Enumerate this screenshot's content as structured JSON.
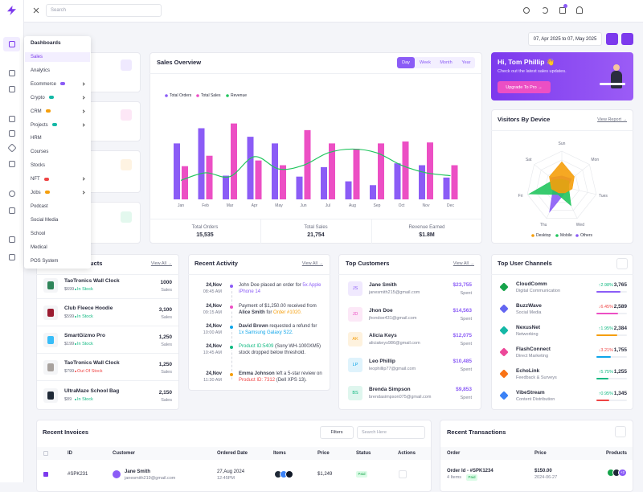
{
  "search_placeholder": "Search",
  "menu": {
    "header": "Dashboards",
    "items": [
      {
        "label": "Sales",
        "active": true
      },
      {
        "label": "Analytics"
      },
      {
        "label": "Ecommerce",
        "badge_color": "#8b5cf6",
        "submenu": true
      },
      {
        "label": "Crypto",
        "badge_color": "#14b8a6",
        "submenu": true
      },
      {
        "label": "CRM",
        "badge_color": "#f59e0b",
        "submenu": true
      },
      {
        "label": "Projects",
        "badge_color": "#14b8a6",
        "submenu": true
      },
      {
        "label": "HRM"
      },
      {
        "label": "Courses"
      },
      {
        "label": "Stocks"
      },
      {
        "label": "NFT",
        "badge_color": "#ef4444",
        "submenu": true
      },
      {
        "label": "Jobs",
        "badge_color": "#f59e0b",
        "submenu": true
      },
      {
        "label": "Podcast"
      },
      {
        "label": "Social Media"
      },
      {
        "label": "School"
      },
      {
        "label": "Medical"
      },
      {
        "label": "POS System"
      }
    ]
  },
  "date_range": "07, Apr 2025 to 07, May 2025",
  "chart_data": [
    {
      "type": "bar",
      "title": "Sales Overview",
      "tabs": [
        {
          "label": "Day",
          "active": true
        },
        {
          "label": "Week"
        },
        {
          "label": "Month"
        },
        {
          "label": "Year"
        }
      ],
      "categories": [
        "Jan",
        "Feb",
        "Mar",
        "Apr",
        "May",
        "Jun",
        "Jul",
        "Aug",
        "Sep",
        "Oct",
        "Nov",
        "Dec"
      ],
      "series": [
        {
          "name": "Total Orders",
          "color": "#8b5cf6",
          "values": [
            59,
            75,
            25,
            66,
            59,
            24,
            34,
            19,
            15,
            38,
            36,
            23
          ]
        },
        {
          "name": "Total Sales",
          "color": "#ec4fc4",
          "values": [
            35,
            46,
            80,
            41,
            36,
            73,
            59,
            53,
            59,
            61,
            60,
            36
          ]
        },
        {
          "name": "Revenue",
          "type": "line",
          "color": "#22c55e",
          "values": [
            20,
            28,
            24,
            45,
            32,
            36,
            49,
            53,
            49,
            36,
            28,
            25
          ]
        }
      ],
      "ylim": [
        0,
        100
      ]
    },
    {
      "type": "radar",
      "title": "Visitors By Device",
      "link": "View Report →",
      "categories": [
        "Sun",
        "Mon",
        "Tues",
        "Wed",
        "Thu",
        "Fri",
        "Sat"
      ],
      "series": [
        {
          "name": "Desktop",
          "color": "#f59e0b",
          "values": [
            70,
            45,
            30,
            20,
            20,
            30,
            45
          ]
        },
        {
          "name": "Mobile",
          "color": "#22c55e",
          "values": [
            20,
            25,
            20,
            60,
            25,
            95,
            30
          ]
        },
        {
          "name": "Others",
          "color": "#8b5cf6",
          "values": [
            30,
            35,
            15,
            20,
            80,
            25,
            40
          ]
        }
      ],
      "rlim": [
        0,
        100
      ]
    }
  ],
  "sales_summary": [
    {
      "label": "Total Orders",
      "value": "15,535"
    },
    {
      "label": "Total Sales",
      "value": "21,754"
    },
    {
      "label": "Revenue Earned",
      "value": "$1.8M"
    }
  ],
  "promo": {
    "greeting": "Hi, Tom Phillip 👋",
    "text": "Check out the latest sales updates.",
    "button": "Upgrade To Pro →"
  },
  "top_products": {
    "title": "Top Selling Products",
    "link": "View All →",
    "items": [
      {
        "name": "TaoTronics Wall Clock",
        "price": "$699",
        "status": "In Stock",
        "status_color": "#10b981",
        "sales": "1000",
        "sales_label": "Sales",
        "image_color": "#2f855a"
      },
      {
        "name": "Club Fleece Hoodie",
        "price": "$599",
        "status": "In Stock",
        "status_color": "#10b981",
        "sales": "3,100",
        "sales_label": "Sales",
        "image_color": "#9b1c31"
      },
      {
        "name": "SmartGizmo Pro",
        "price": "$199",
        "status": "In Stock",
        "status_color": "#10b981",
        "sales": "1,250",
        "sales_label": "Sales",
        "image_color": "#38bdf8"
      },
      {
        "name": "TaoTronics Wall Clock",
        "price": "$799",
        "status": "Out Of Stock",
        "status_color": "#ef4444",
        "sales": "1,250",
        "sales_label": "Sales",
        "image_color": "#a8a29e"
      },
      {
        "name": "UltraMaze School Bag",
        "price": "$89",
        "status": "In Stock",
        "status_color": "#10b981",
        "sales": "2,150",
        "sales_label": "Sales",
        "image_color": "#1f2937"
      }
    ]
  },
  "recent_activity": {
    "title": "Recent Activity",
    "link": "View All →",
    "items": [
      {
        "date": "24,Nov",
        "time": "08:45 AM",
        "dot_color": "#8b5cf6",
        "parts": [
          {
            "text": "John Doe placed an order for "
          },
          {
            "text": "5x Apple iPhone 14",
            "color": "#8b5cf6"
          }
        ]
      },
      {
        "date": "24,Nov",
        "time": "09:15 AM",
        "dot_color": "#ec4fc4",
        "parts": [
          {
            "text": "Payment of $1,250.00 received from "
          },
          {
            "text": "Alice Smith",
            "bold": true
          },
          {
            "text": " for "
          },
          {
            "text": "Order #1020.",
            "color": "#f59e0b"
          }
        ]
      },
      {
        "date": "24,Nov",
        "time": "10:00 AM",
        "dot_color": "#0ea5e9",
        "parts": [
          {
            "text": "David Brown",
            "bold": true
          },
          {
            "text": " requested a refund for "
          },
          {
            "text": "1x Samsung Galaxy S22.",
            "color": "#0ea5e9"
          }
        ]
      },
      {
        "date": "24,Nov",
        "time": "10:45 AM",
        "dot_color": "#10b981",
        "parts": [
          {
            "text": "Product ID:5409",
            "color": "#10b981"
          },
          {
            "text": " (Sony WH-1000XM5) stock dropped below threshold."
          }
        ]
      },
      {
        "date": "24,Nov",
        "time": "11:30 AM",
        "dot_color": "#f59e0b",
        "parts": [
          {
            "text": "Emma Johnson",
            "bold": true
          },
          {
            "text": " left a 5-star review on "
          },
          {
            "text": "Product ID: 7312",
            "color": "#ef4444"
          },
          {
            "text": " (Dell XPS 13)."
          }
        ]
      }
    ]
  },
  "top_customers": {
    "title": "Top Customers",
    "link": "View All →",
    "items": [
      {
        "initials": "JS",
        "avatar_color": "#8b5cf6",
        "name": "Jane Smith",
        "email": "janesmith215@gmail.com",
        "amount": "$23,755",
        "amount_label": "Spent"
      },
      {
        "initials": "JD",
        "avatar_color": "#ec4fc4",
        "name": "Jhon Doe",
        "email": "jhondoe431@gmail.com",
        "amount": "$14,563",
        "amount_label": "Spent"
      },
      {
        "initials": "AK",
        "avatar_color": "#f59e0b",
        "name": "Alicia Keys",
        "email": "aliciakeys986@gmail.com",
        "amount": "$12,075",
        "amount_label": "Spent"
      },
      {
        "initials": "LP",
        "avatar_color": "#0ea5e9",
        "name": "Leo Phillip",
        "email": "leophillip77@gmail.com",
        "amount": "$10,485",
        "amount_label": "Spent"
      },
      {
        "initials": "BS",
        "avatar_color": "#10b981",
        "name": "Brenda Simpson",
        "email": "brendasimpson075@gmail.com",
        "amount": "$9,853",
        "amount_label": "Spent"
      }
    ]
  },
  "top_channels": {
    "title": "Top User Channels",
    "items": [
      {
        "name": "CloudComm",
        "category": "Digital Communication",
        "change": "↑2.98%",
        "value": "3,765",
        "icon_color": "#16a34a",
        "bar_color": "#8b5cf6"
      },
      {
        "name": "BuzzWave",
        "category": "Social Media",
        "change": "↓6.45%",
        "value": "2,589",
        "icon_color": "#6366f1",
        "bar_color": "#ec4fc4"
      },
      {
        "name": "NexusNet",
        "category": "Networking",
        "change": "↑1.95%",
        "value": "2,384",
        "icon_color": "#14b8a6",
        "bar_color": "#f59e0b"
      },
      {
        "name": "FlashConnect",
        "category": "Direct Marketing",
        "change": "↓3.21%",
        "value": "1,755",
        "icon_color": "#ec4899",
        "bar_color": "#0ea5e9"
      },
      {
        "name": "EchoLink",
        "category": "Feedback & Surveys",
        "change": "↑5.75%",
        "value": "1,255",
        "icon_color": "#f97316",
        "bar_color": "#10b981"
      },
      {
        "name": "VibeStream",
        "category": "Content Distribution",
        "change": "↑0.95%",
        "value": "1,345",
        "icon_color": "#3b82f6",
        "bar_color": "#ef4444"
      }
    ]
  },
  "recent_invoices": {
    "title": "Recent Invoices",
    "filter_button": "Filters",
    "search_placeholder": "Search Here",
    "columns": [
      "ID",
      "Customer",
      "Ordered Date",
      "Items",
      "Price",
      "Status",
      "Actions"
    ],
    "rows": [
      {
        "id": "#SPK231",
        "customer": "Jane Smith",
        "email": "janesmith219@gmail.com",
        "date": "27,Aug 2024",
        "time": "12:45PM",
        "price": "$1,249",
        "status": "Paid"
      }
    ]
  },
  "recent_transactions": {
    "title": "Recent Transactions",
    "columns": [
      "Order",
      "Price",
      "Products"
    ],
    "rows": [
      {
        "order": "Order Id - #SPK1234",
        "items": "4 Items",
        "status": "Paid",
        "price": "$150.00",
        "date": "2024-06-27",
        "more": "+2"
      }
    ]
  }
}
